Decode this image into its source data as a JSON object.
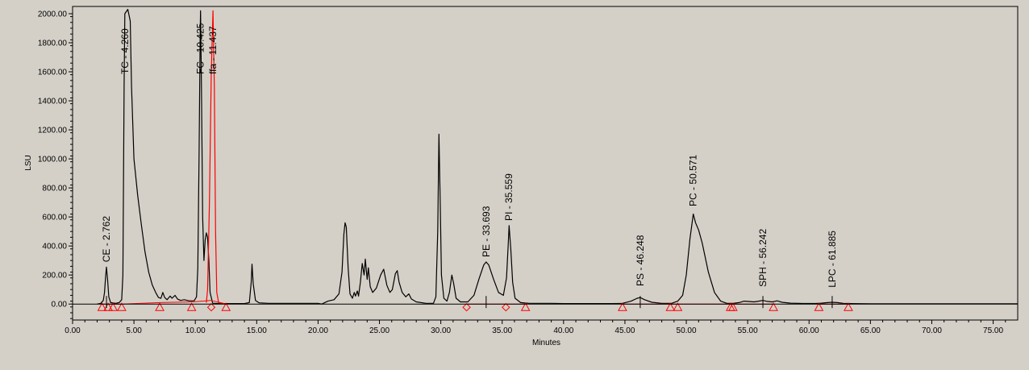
{
  "chart_data": {
    "type": "line",
    "title": "",
    "xlabel": "Minutes",
    "ylabel": "LSU",
    "xlim": [
      0,
      77
    ],
    "ylim": [
      -110,
      2050
    ],
    "x_ticks": [
      0,
      5,
      10,
      15,
      20,
      25,
      30,
      35,
      40,
      45,
      50,
      55,
      60,
      65,
      70,
      75
    ],
    "x_tick_labels": [
      "0.00",
      "5.00",
      "10.00",
      "15.00",
      "20.00",
      "25.00",
      "30.00",
      "35.00",
      "40.00",
      "45.00",
      "50.00",
      "55.00",
      "60.00",
      "65.00",
      "70.00",
      "75.00"
    ],
    "y_ticks": [
      0,
      200,
      400,
      600,
      800,
      1000,
      1200,
      1400,
      1600,
      1800,
      2000
    ],
    "y_tick_labels": [
      "0.00",
      "200.00",
      "400.00",
      "600.00",
      "800.00",
      "1000.00",
      "1200.00",
      "1400.00",
      "1600.00",
      "1800.00",
      "2000.00"
    ],
    "grid": false,
    "colors": {
      "trace": "#000000",
      "integration": "#ff0000",
      "plot_bg": "#d4d0c8"
    },
    "series": [
      {
        "color": "#000000",
        "points": [
          [
            2.0,
            0
          ],
          [
            2.3,
            5
          ],
          [
            2.5,
            25
          ],
          [
            2.6,
            80
          ],
          [
            2.7,
            200
          ],
          [
            2.76,
            255
          ],
          [
            2.85,
            170
          ],
          [
            2.95,
            50
          ],
          [
            3.1,
            10
          ],
          [
            3.5,
            5
          ],
          [
            3.8,
            10
          ],
          [
            4.0,
            30
          ],
          [
            4.1,
            200
          ],
          [
            4.2,
            1500
          ],
          [
            4.26,
            2000
          ],
          [
            4.5,
            2030
          ],
          [
            4.7,
            1950
          ],
          [
            4.8,
            1500
          ],
          [
            5.0,
            1000
          ],
          [
            5.3,
            750
          ],
          [
            5.6,
            550
          ],
          [
            5.9,
            360
          ],
          [
            6.2,
            220
          ],
          [
            6.5,
            130
          ],
          [
            6.8,
            75
          ],
          [
            7.0,
            45
          ],
          [
            7.2,
            40
          ],
          [
            7.35,
            80
          ],
          [
            7.5,
            45
          ],
          [
            7.7,
            30
          ],
          [
            7.95,
            55
          ],
          [
            8.1,
            40
          ],
          [
            8.35,
            60
          ],
          [
            8.55,
            35
          ],
          [
            8.8,
            25
          ],
          [
            9.1,
            30
          ],
          [
            9.5,
            22
          ],
          [
            9.9,
            22
          ],
          [
            10.1,
            50
          ],
          [
            10.2,
            250
          ],
          [
            10.3,
            1000
          ],
          [
            10.4,
            1900
          ],
          [
            10.425,
            2020
          ],
          [
            10.5,
            1500
          ],
          [
            10.6,
            600
          ],
          [
            10.7,
            300
          ],
          [
            10.8,
            440
          ],
          [
            10.9,
            490
          ],
          [
            11.0,
            460
          ],
          [
            11.1,
            300
          ],
          [
            11.2,
            80
          ],
          [
            11.4,
            10
          ],
          [
            11.437,
            5
          ],
          [
            11.6,
            5
          ],
          [
            12.0,
            3
          ],
          [
            13.0,
            3
          ],
          [
            14.0,
            3
          ],
          [
            14.4,
            10
          ],
          [
            14.55,
            150
          ],
          [
            14.62,
            275
          ],
          [
            14.72,
            140
          ],
          [
            14.9,
            25
          ],
          [
            15.2,
            8
          ],
          [
            16,
            5
          ],
          [
            17,
            5
          ],
          [
            18,
            5
          ],
          [
            19,
            5
          ],
          [
            20,
            5
          ],
          [
            20.3,
            0
          ],
          [
            20.8,
            20
          ],
          [
            21.3,
            30
          ],
          [
            21.7,
            70
          ],
          [
            21.95,
            220
          ],
          [
            22.1,
            480
          ],
          [
            22.2,
            560
          ],
          [
            22.3,
            530
          ],
          [
            22.45,
            250
          ],
          [
            22.6,
            70
          ],
          [
            22.8,
            40
          ],
          [
            22.95,
            80
          ],
          [
            23.05,
            55
          ],
          [
            23.2,
            90
          ],
          [
            23.3,
            55
          ],
          [
            23.45,
            150
          ],
          [
            23.6,
            280
          ],
          [
            23.75,
            200
          ],
          [
            23.85,
            310
          ],
          [
            24.0,
            170
          ],
          [
            24.1,
            250
          ],
          [
            24.25,
            120
          ],
          [
            24.45,
            80
          ],
          [
            24.75,
            110
          ],
          [
            25.1,
            200
          ],
          [
            25.35,
            240
          ],
          [
            25.6,
            130
          ],
          [
            25.85,
            80
          ],
          [
            26.05,
            100
          ],
          [
            26.3,
            210
          ],
          [
            26.45,
            230
          ],
          [
            26.6,
            150
          ],
          [
            26.85,
            80
          ],
          [
            27.15,
            50
          ],
          [
            27.4,
            70
          ],
          [
            27.6,
            35
          ],
          [
            28.0,
            15
          ],
          [
            28.8,
            5
          ],
          [
            29.4,
            5
          ],
          [
            29.6,
            50
          ],
          [
            29.75,
            500
          ],
          [
            29.85,
            1170
          ],
          [
            29.95,
            700
          ],
          [
            30.05,
            200
          ],
          [
            30.25,
            40
          ],
          [
            30.5,
            20
          ],
          [
            30.7,
            80
          ],
          [
            30.9,
            200
          ],
          [
            31.05,
            140
          ],
          [
            31.25,
            40
          ],
          [
            31.6,
            15
          ],
          [
            32.2,
            15
          ],
          [
            32.7,
            60
          ],
          [
            33.1,
            170
          ],
          [
            33.5,
            270
          ],
          [
            33.69,
            290
          ],
          [
            33.9,
            270
          ],
          [
            34.3,
            170
          ],
          [
            34.7,
            80
          ],
          [
            35.1,
            60
          ],
          [
            35.35,
            180
          ],
          [
            35.5,
            420
          ],
          [
            35.56,
            540
          ],
          [
            35.7,
            380
          ],
          [
            35.85,
            150
          ],
          [
            36.05,
            40
          ],
          [
            36.5,
            10
          ],
          [
            37.2,
            5
          ],
          [
            38,
            5
          ],
          [
            39,
            5
          ],
          [
            40,
            3
          ],
          [
            41,
            3
          ],
          [
            42,
            3
          ],
          [
            43,
            3
          ],
          [
            44,
            3
          ],
          [
            44.8,
            5
          ],
          [
            45.5,
            20
          ],
          [
            46.0,
            40
          ],
          [
            46.25,
            45
          ],
          [
            46.6,
            30
          ],
          [
            47.2,
            12
          ],
          [
            48,
            5
          ],
          [
            48.8,
            5
          ],
          [
            49.3,
            20
          ],
          [
            49.7,
            60
          ],
          [
            50.0,
            200
          ],
          [
            50.3,
            450
          ],
          [
            50.571,
            620
          ],
          [
            50.75,
            560
          ],
          [
            51.0,
            510
          ],
          [
            51.3,
            420
          ],
          [
            51.8,
            220
          ],
          [
            52.3,
            80
          ],
          [
            52.8,
            20
          ],
          [
            53.3,
            5
          ],
          [
            53.8,
            5
          ],
          [
            54.3,
            10
          ],
          [
            54.7,
            20
          ],
          [
            55.0,
            18
          ],
          [
            55.5,
            15
          ],
          [
            55.9,
            20
          ],
          [
            56.24,
            25
          ],
          [
            56.6,
            18
          ],
          [
            57.0,
            15
          ],
          [
            57.4,
            22
          ],
          [
            57.8,
            12
          ],
          [
            58.5,
            6
          ],
          [
            59.5,
            4
          ],
          [
            60.5,
            4
          ],
          [
            61.0,
            6
          ],
          [
            61.5,
            10
          ],
          [
            61.89,
            12
          ],
          [
            62.3,
            10
          ],
          [
            62.8,
            5
          ],
          [
            63.5,
            3
          ],
          [
            65,
            2
          ],
          [
            70,
            2
          ],
          [
            77,
            2
          ]
        ]
      },
      {
        "color": "#ff0000",
        "points": [
          [
            10.9,
            10
          ],
          [
            11.0,
            100
          ],
          [
            11.15,
            700
          ],
          [
            11.3,
            1600
          ],
          [
            11.437,
            2020
          ],
          [
            11.55,
            1500
          ],
          [
            11.65,
            500
          ],
          [
            11.75,
            80
          ],
          [
            11.9,
            10
          ],
          [
            12.3,
            5
          ]
        ]
      }
    ],
    "baselines": [
      [
        [
          2.4,
          0
        ],
        [
          2.9,
          0
        ],
        [
          3.3,
          0
        ],
        [
          4.0,
          0
        ],
        [
          7.1,
          10
        ],
        [
          9.7,
          15
        ],
        [
          11.3,
          25
        ],
        [
          12.5,
          0
        ]
      ],
      [
        [
          32.1,
          0
        ],
        [
          35.3,
          0
        ],
        [
          36.9,
          0
        ]
      ],
      [
        [
          44.8,
          0
        ],
        [
          48.7,
          0
        ],
        [
          49.3,
          0
        ],
        [
          53.6,
          0
        ],
        [
          53.8,
          0
        ],
        [
          57.1,
          0
        ]
      ],
      [
        [
          60.8,
          0
        ],
        [
          63.2,
          0
        ]
      ]
    ],
    "markers": [
      {
        "x": 2.4,
        "y": 0,
        "shape": "triangle"
      },
      {
        "x": 2.9,
        "y": 0,
        "shape": "triangle"
      },
      {
        "x": 3.3,
        "y": 0,
        "shape": "triangle"
      },
      {
        "x": 4.0,
        "y": 0,
        "shape": "triangle"
      },
      {
        "x": 7.1,
        "y": 0,
        "shape": "triangle"
      },
      {
        "x": 9.7,
        "y": 0,
        "shape": "triangle"
      },
      {
        "x": 11.3,
        "y": 0,
        "shape": "diamond"
      },
      {
        "x": 12.5,
        "y": 0,
        "shape": "triangle"
      },
      {
        "x": 32.1,
        "y": 0,
        "shape": "diamond"
      },
      {
        "x": 35.3,
        "y": 0,
        "shape": "diamond"
      },
      {
        "x": 36.9,
        "y": 0,
        "shape": "triangle"
      },
      {
        "x": 44.8,
        "y": 0,
        "shape": "triangle"
      },
      {
        "x": 48.7,
        "y": 0,
        "shape": "triangle"
      },
      {
        "x": 49.3,
        "y": 0,
        "shape": "triangle"
      },
      {
        "x": 53.6,
        "y": 0,
        "shape": "triangle"
      },
      {
        "x": 53.8,
        "y": 0,
        "shape": "triangle"
      },
      {
        "x": 57.1,
        "y": 0,
        "shape": "triangle"
      },
      {
        "x": 60.8,
        "y": 0,
        "shape": "triangle"
      },
      {
        "x": 63.2,
        "y": 0,
        "shape": "triangle"
      }
    ],
    "annotations": [
      {
        "text": "CE - 2.762",
        "x": 2.762,
        "y": 255
      },
      {
        "text": "TC - 4.260",
        "x": 4.26,
        "y": 1550
      },
      {
        "text": "FC - 10.425",
        "x": 10.425,
        "y": 1550
      },
      {
        "text": "ffa - 11.437",
        "x": 11.437,
        "y": 1550
      },
      {
        "text": "PE - 33.693",
        "x": 33.693,
        "y": 290
      },
      {
        "text": "PI - 35.559",
        "x": 35.559,
        "y": 540
      },
      {
        "text": "PS - 46.248",
        "x": 46.248,
        "y": 90
      },
      {
        "text": "PC - 50.571",
        "x": 50.571,
        "y": 640
      },
      {
        "text": "SPH - 56.242",
        "x": 56.242,
        "y": 85
      },
      {
        "text": "LPC - 61.885",
        "x": 61.885,
        "y": 80
      }
    ]
  }
}
